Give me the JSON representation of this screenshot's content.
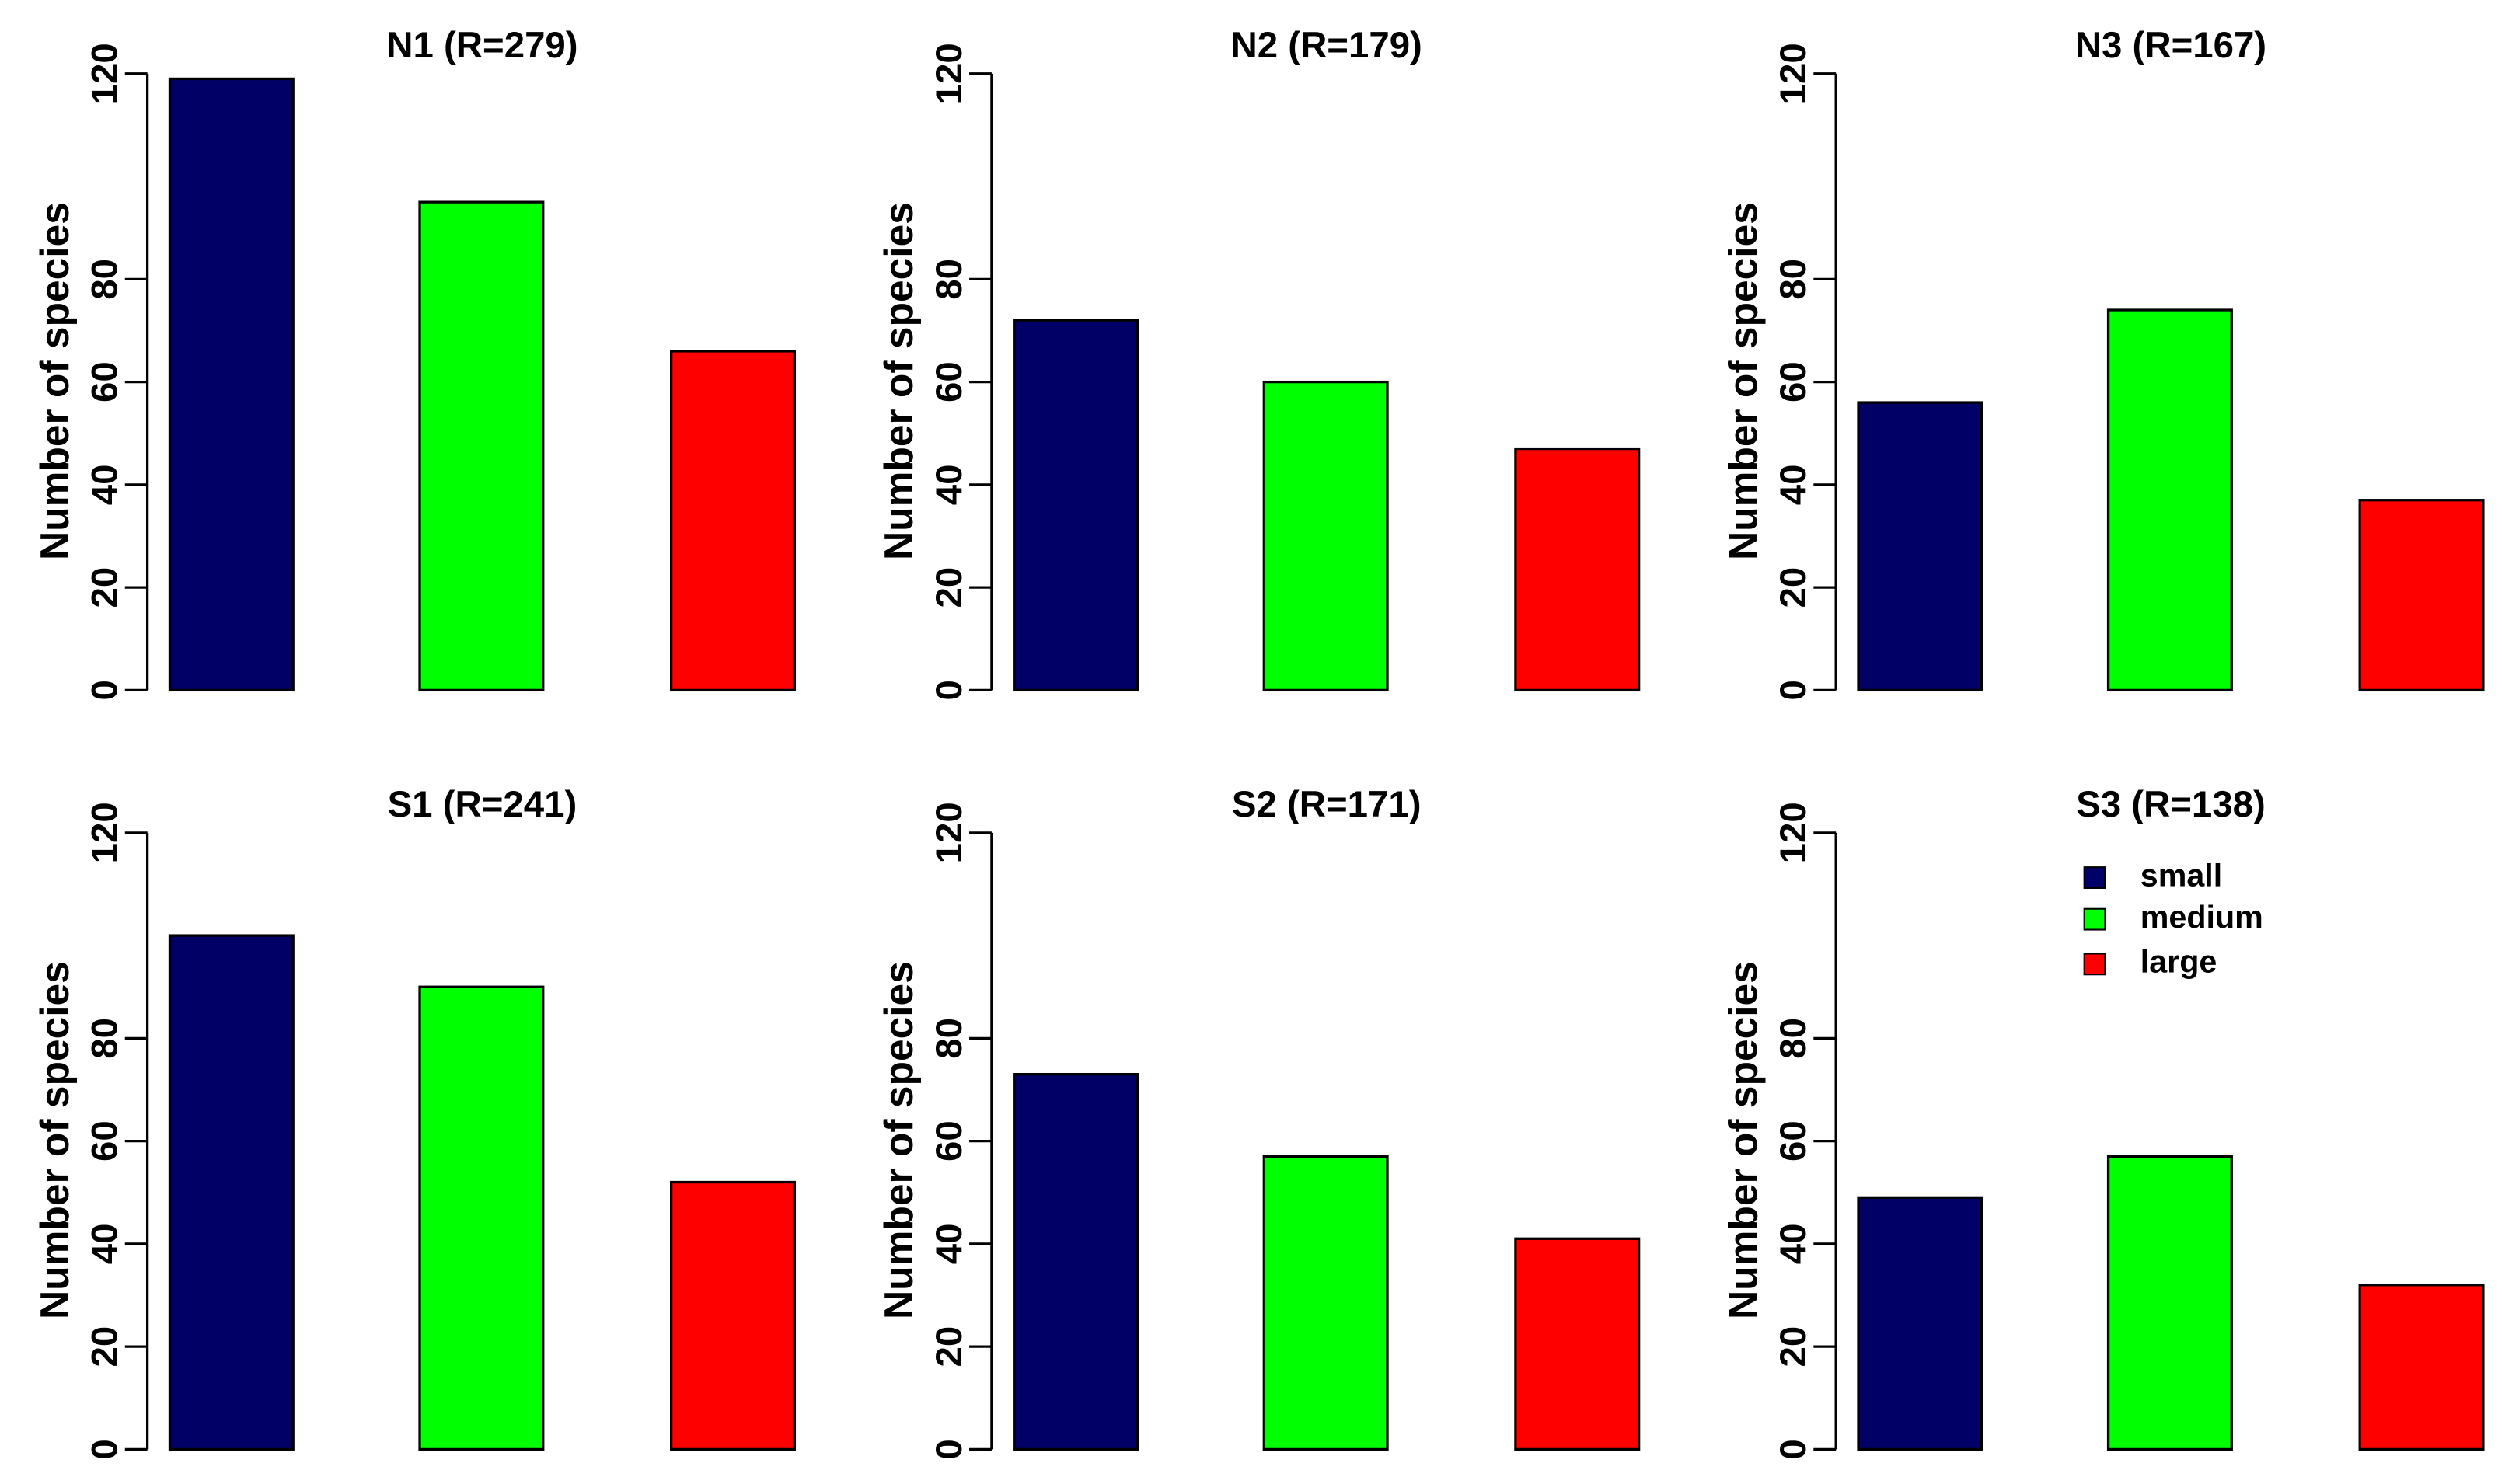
{
  "chart_data": [
    {
      "type": "bar",
      "title": "N1 (R=279)",
      "ylabel": "Number of species",
      "ylim": [
        0,
        120
      ],
      "yticks": [
        0,
        20,
        40,
        60,
        80,
        120
      ],
      "categories": [
        "small",
        "medium",
        "large"
      ],
      "values": [
        119,
        95,
        66
      ],
      "colors": [
        "#000066",
        "#00FF00",
        "#FF0000"
      ]
    },
    {
      "type": "bar",
      "title": "N2 (R=179)",
      "ylabel": "Number of species",
      "ylim": [
        0,
        120
      ],
      "yticks": [
        0,
        20,
        40,
        60,
        80,
        120
      ],
      "categories": [
        "small",
        "medium",
        "large"
      ],
      "values": [
        72,
        60,
        47
      ],
      "colors": [
        "#000066",
        "#00FF00",
        "#FF0000"
      ]
    },
    {
      "type": "bar",
      "title": "N3 (R=167)",
      "ylabel": "Number of species",
      "ylim": [
        0,
        120
      ],
      "yticks": [
        0,
        20,
        40,
        60,
        80,
        120
      ],
      "categories": [
        "small",
        "medium",
        "large"
      ],
      "values": [
        56,
        74,
        37
      ],
      "colors": [
        "#000066",
        "#00FF00",
        "#FF0000"
      ]
    },
    {
      "type": "bar",
      "title": "S1 (R=241)",
      "ylabel": "Number of species",
      "ylim": [
        0,
        120
      ],
      "yticks": [
        0,
        20,
        40,
        60,
        80,
        120
      ],
      "categories": [
        "small",
        "medium",
        "large"
      ],
      "values": [
        100,
        90,
        52
      ],
      "colors": [
        "#000066",
        "#00FF00",
        "#FF0000"
      ]
    },
    {
      "type": "bar",
      "title": "S2 (R=171)",
      "ylabel": "Number of species",
      "ylim": [
        0,
        120
      ],
      "yticks": [
        0,
        20,
        40,
        60,
        80,
        120
      ],
      "categories": [
        "small",
        "medium",
        "large"
      ],
      "values": [
        73,
        57,
        41
      ],
      "colors": [
        "#000066",
        "#00FF00",
        "#FF0000"
      ]
    },
    {
      "type": "bar",
      "title": "S3 (R=138)",
      "ylabel": "Number of species",
      "ylim": [
        0,
        120
      ],
      "yticks": [
        0,
        20,
        40,
        60,
        80,
        120
      ],
      "categories": [
        "small",
        "medium",
        "large"
      ],
      "values": [
        49,
        57,
        32
      ],
      "colors": [
        "#000066",
        "#00FF00",
        "#FF0000"
      ]
    }
  ],
  "legend": {
    "placement": "top-right of S3 panel",
    "entries": [
      {
        "label": "small",
        "color": "#000066"
      },
      {
        "label": "medium",
        "color": "#00FF00"
      },
      {
        "label": "large",
        "color": "#FF0000"
      }
    ]
  }
}
